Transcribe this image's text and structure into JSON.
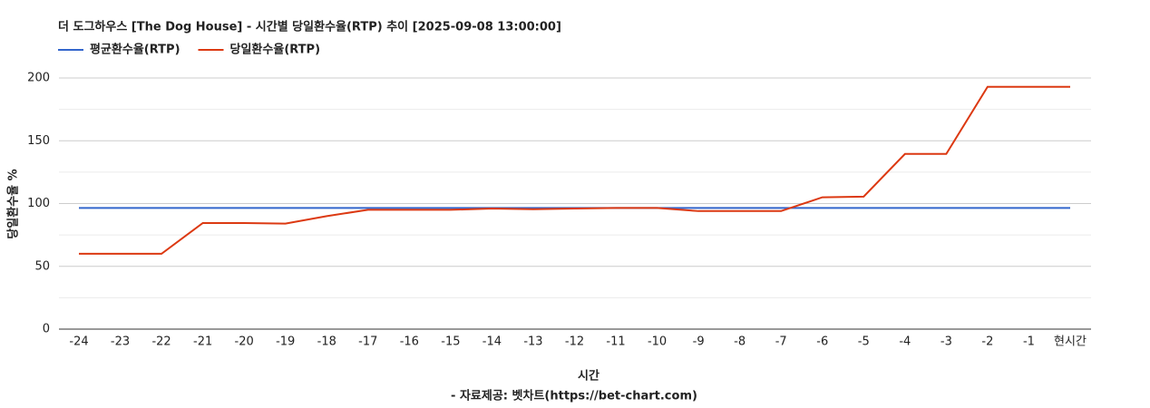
{
  "chart_data": {
    "type": "line",
    "title": "더 도그하우스 [The Dog House] - 시간별 당일환수율(RTP) 추이 [2025-09-08 13:00:00]",
    "x_label": "시간",
    "y_label": "당일환수율 %",
    "source": "- 자료제공: 벳차트(https://bet-chart.com)",
    "categories": [
      "-24",
      "-23",
      "-22",
      "-21",
      "-20",
      "-19",
      "-18",
      "-17",
      "-16",
      "-15",
      "-14",
      "-13",
      "-12",
      "-11",
      "-10",
      "-9",
      "-8",
      "-7",
      "-6",
      "-5",
      "-4",
      "-3",
      "-2",
      "-1",
      "현시간"
    ],
    "series": [
      {
        "name": "평균환수율(RTP)",
        "color": "#3366cc",
        "values": [
          96.5,
          96.5,
          96.5,
          96.5,
          96.5,
          96.5,
          96.5,
          96.5,
          96.5,
          96.5,
          96.5,
          96.5,
          96.5,
          96.5,
          96.5,
          96.5,
          96.5,
          96.5,
          96.5,
          96.5,
          96.5,
          96.5,
          96.5,
          96.5,
          96.5
        ]
      },
      {
        "name": "당일환수율(RTP)",
        "color": "#dc3912",
        "values": [
          60,
          60,
          60,
          84.5,
          84.5,
          84,
          90,
          95,
          95,
          95,
          96,
          95.5,
          96,
          96.5,
          96.5,
          94,
          94,
          94,
          105,
          105.5,
          139.5,
          139.5,
          193,
          193,
          193
        ]
      }
    ],
    "ylim": [
      0,
      200
    ],
    "yticks": [
      0,
      50,
      100,
      150,
      200
    ],
    "minor_yticks": [
      25,
      75,
      125,
      175
    ],
    "grid": true,
    "legend": "top-left"
  }
}
